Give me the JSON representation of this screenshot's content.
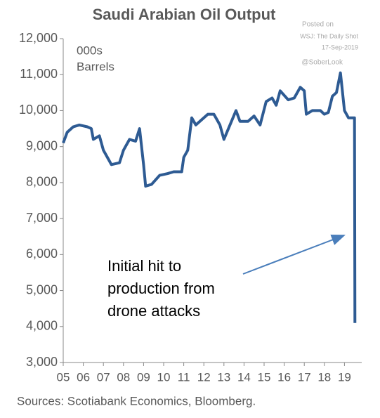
{
  "chart_data": {
    "type": "line",
    "title": "Saudi Arabian Oil Output",
    "unit_label": [
      "000s",
      "Barrels"
    ],
    "posted": [
      "Posted on",
      "WSJ: The Daily Shot",
      "17-Sep-2019"
    ],
    "handle": "@SoberLook",
    "source": "Sources: Scotiabank Economics, Bloomberg.",
    "annotation": [
      "Initial hit to",
      "production from",
      "drone attacks"
    ],
    "x": [
      2005.0,
      2005.2,
      2005.5,
      2005.8,
      2006.2,
      2006.4,
      2006.5,
      2006.8,
      2007.0,
      2007.2,
      2007.4,
      2007.8,
      2008.0,
      2008.3,
      2008.6,
      2008.8,
      2009.0,
      2009.1,
      2009.4,
      2009.8,
      2010.2,
      2010.5,
      2010.9,
      2011.0,
      2011.2,
      2011.4,
      2011.6,
      2011.9,
      2012.2,
      2012.5,
      2012.8,
      2013.0,
      2013.3,
      2013.6,
      2013.8,
      2014.2,
      2014.5,
      2014.8,
      2015.1,
      2015.4,
      2015.6,
      2015.8,
      2016.2,
      2016.5,
      2016.8,
      2017.0,
      2017.1,
      2017.4,
      2017.8,
      2018.0,
      2018.2,
      2018.4,
      2018.6,
      2018.8,
      2019.0,
      2019.2,
      2019.5,
      2019.52
    ],
    "series": [
      {
        "name": "Saudi Arabian Oil Output",
        "color": "#2e5b93",
        "values": [
          9100,
          9400,
          9550,
          9600,
          9550,
          9500,
          9200,
          9300,
          8900,
          8700,
          8500,
          8550,
          8900,
          9200,
          9150,
          9500,
          8500,
          7900,
          7950,
          8200,
          8250,
          8300,
          8300,
          8700,
          8900,
          9800,
          9600,
          9750,
          9900,
          9900,
          9600,
          9200,
          9600,
          10000,
          9700,
          9700,
          9850,
          9600,
          10250,
          10350,
          10150,
          10550,
          10300,
          10350,
          10650,
          10550,
          9900,
          10000,
          10000,
          9900,
          9950,
          10400,
          10500,
          11050,
          10000,
          9800,
          9800,
          4100
        ]
      }
    ],
    "xlim": [
      2005,
      2019.86
    ],
    "xticks": [
      {
        "value": 2005,
        "label": "05"
      },
      {
        "value": 2006,
        "label": "06"
      },
      {
        "value": 2007,
        "label": "07"
      },
      {
        "value": 2008,
        "label": "08"
      },
      {
        "value": 2009,
        "label": "09"
      },
      {
        "value": 2010,
        "label": "10"
      },
      {
        "value": 2011,
        "label": "11"
      },
      {
        "value": 2012,
        "label": "12"
      },
      {
        "value": 2013,
        "label": "13"
      },
      {
        "value": 2014,
        "label": "14"
      },
      {
        "value": 2015,
        "label": "15"
      },
      {
        "value": 2016,
        "label": "16"
      },
      {
        "value": 2017,
        "label": "17"
      },
      {
        "value": 2018,
        "label": "18"
      },
      {
        "value": 2019,
        "label": "19"
      }
    ],
    "ylim": [
      3000,
      12000
    ],
    "yticks": [
      {
        "value": 3000,
        "label": "3,000"
      },
      {
        "value": 4000,
        "label": "4,000"
      },
      {
        "value": 5000,
        "label": "5,000"
      },
      {
        "value": 6000,
        "label": "6,000"
      },
      {
        "value": 7000,
        "label": "7,000"
      },
      {
        "value": 8000,
        "label": "8,000"
      },
      {
        "value": 9000,
        "label": "9,000"
      },
      {
        "value": 10000,
        "label": "10,000"
      },
      {
        "value": 11000,
        "label": "11,000"
      },
      {
        "value": 12000,
        "label": "12,000"
      }
    ],
    "grid": false
  }
}
